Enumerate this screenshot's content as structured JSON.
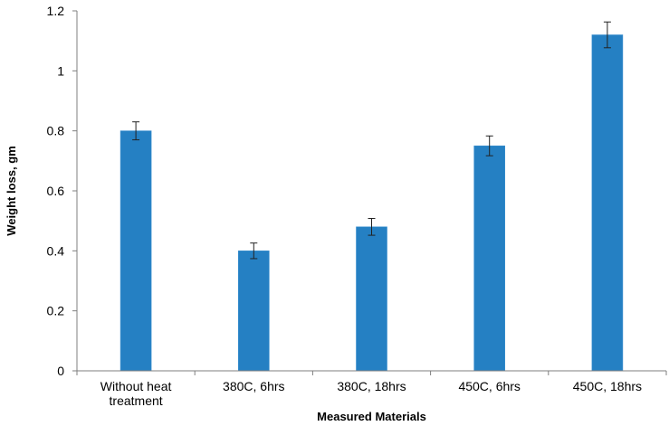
{
  "chart_data": {
    "type": "bar",
    "title": "",
    "xlabel": "Measured Materials",
    "ylabel": "Weight loss, gm",
    "ylim": [
      0,
      1.2
    ],
    "yticks": [
      0,
      0.2,
      0.4,
      0.6,
      0.8,
      1,
      1.2
    ],
    "ytick_labels": [
      "0",
      "0.2",
      "0.4",
      "0.6",
      "0.8",
      "1",
      "1.2"
    ],
    "categories": [
      [
        "Without heat",
        "treatment"
      ],
      [
        "380C, 6hrs"
      ],
      [
        "380C, 18hrs"
      ],
      [
        "450C, 6hrs"
      ],
      [
        "450C, 18hrs"
      ]
    ],
    "values": [
      0.8,
      0.4,
      0.48,
      0.75,
      1.12
    ],
    "error": [
      0.03,
      0.026,
      0.028,
      0.033,
      0.043
    ],
    "bar_color": "#2580C3",
    "grid": false,
    "legend": "none"
  }
}
